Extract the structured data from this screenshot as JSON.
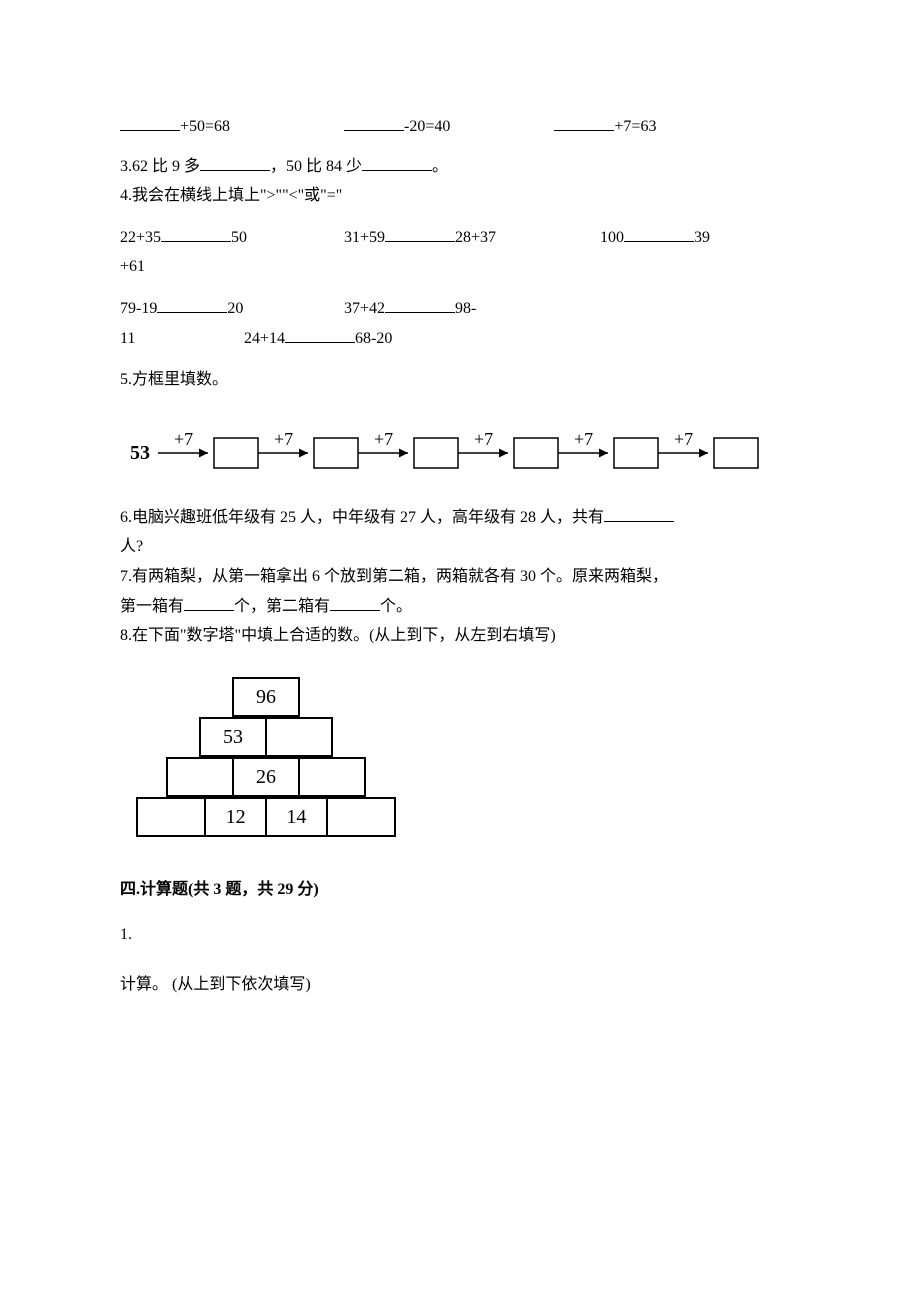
{
  "q_line1": {
    "e1_suffix": "+50=68",
    "e2_suffix": "-20=40",
    "e3_suffix": "+7=63"
  },
  "q3": {
    "prefix": "3.62 比 9 多",
    "mid": "，50 比 84 少",
    "suffix": "。"
  },
  "q4": {
    "title": "4.我会在横线上填上\">\"\"<\"或\"=\"",
    "r1a_left": "22+35",
    "r1a_right": "50",
    "r1b_left": "31+59",
    "r1b_right": "28+37",
    "r1c_left": "100",
    "r1c_right": "39",
    "r1_tail": "+61",
    "r2a_left": "79-19",
    "r2a_right": "20",
    "r2b_left": "37+42",
    "r2b_right": "98-",
    "r3a_left": "11",
    "r3b_left": "24+14",
    "r3b_right": "68-20"
  },
  "q5": {
    "title": "5.方框里填数。",
    "start": "53",
    "op": "+7",
    "boxes": 6
  },
  "q6": {
    "line1": "6.电脑兴趣班低年级有 25 人，中年级有 27 人，高年级有 28 人，共有",
    "line2": "人?"
  },
  "q7": {
    "seg1": "7.有两箱梨，从第一箱拿出 6 个放到第二箱，两箱就各有 30 个。原来两箱梨，",
    "seg2a": "第一箱有",
    "seg2b": "个，第二箱有",
    "seg2c": "个。"
  },
  "q8": {
    "title": "8.在下面\"数字塔\"中填上合适的数。(从上到下，从左到右填写)",
    "rows": [
      [
        "96"
      ],
      [
        "53",
        ""
      ],
      [
        "",
        "26",
        ""
      ],
      [
        "",
        "12",
        "14",
        ""
      ]
    ]
  },
  "section4": {
    "heading": "四.计算题(共 3 题，共 29 分)",
    "q1_num": "1.",
    "q1_text": "计算。 (从上到下依次填写)"
  }
}
